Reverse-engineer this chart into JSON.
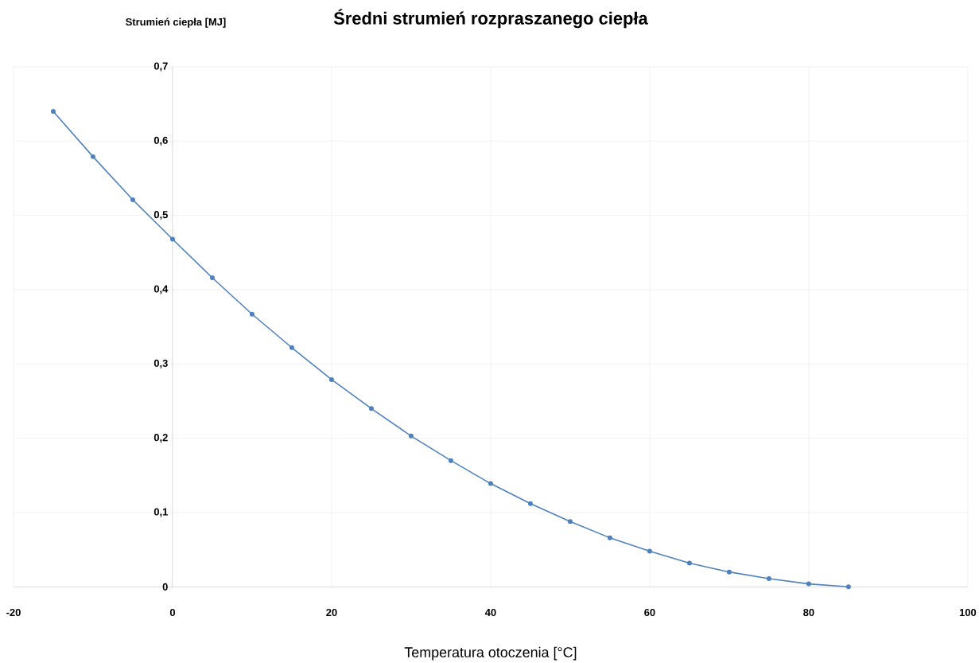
{
  "chart_data": {
    "type": "line",
    "title": "Średni strumień rozpraszanego ciepła",
    "xlabel": "Temperatura otoczenia [°C]",
    "ylabel": "Strumień ciepła [MJ]",
    "x": [
      -15,
      -10,
      -5,
      0,
      5,
      10,
      15,
      20,
      25,
      30,
      35,
      40,
      45,
      50,
      55,
      60,
      65,
      70,
      75,
      80,
      85
    ],
    "series": [
      {
        "color": "#4f81bd",
        "values": [
          0.64,
          0.579,
          0.521,
          0.468,
          0.416,
          0.367,
          0.322,
          0.279,
          0.24,
          0.203,
          0.17,
          0.139,
          0.112,
          0.088,
          0.066,
          0.048,
          0.032,
          0.02,
          0.011,
          0.004,
          0.0
        ]
      }
    ],
    "xlim": [
      -20,
      100
    ],
    "ylim": [
      0,
      0.7
    ],
    "xticks": [
      -20,
      0,
      20,
      40,
      60,
      80,
      100
    ],
    "yticks": [
      0,
      {
        "value": 0.1,
        "label": "0,1"
      },
      {
        "value": 0.2,
        "label": "0,2"
      },
      {
        "value": 0.3,
        "label": "0,3"
      },
      {
        "value": 0.4,
        "label": "0,4"
      },
      {
        "value": 0.5,
        "label": "0,5"
      },
      {
        "value": 0.6,
        "label": "0,6"
      },
      {
        "value": 0.7,
        "label": "0,7"
      }
    ],
    "grid": true,
    "marker": "circle",
    "line_style": "solid"
  }
}
